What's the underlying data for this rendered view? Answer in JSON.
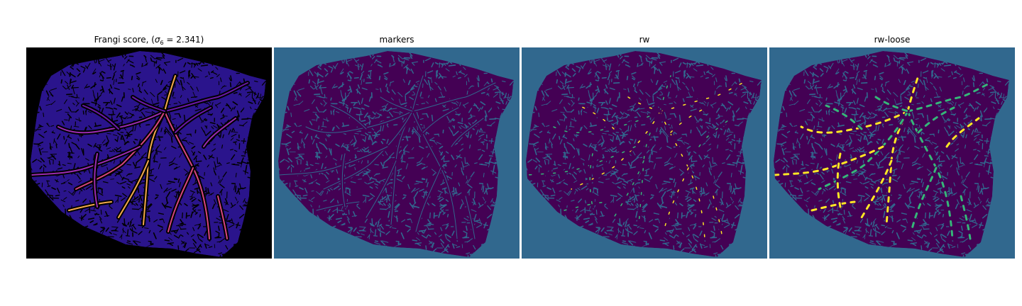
{
  "figure": {
    "panels": [
      {
        "id": "frangi",
        "title_main": "Frangi score, (",
        "title_sigma": "σ",
        "title_sub": "6",
        "title_tail": " = 2.341)",
        "background": "#000000",
        "tissue": "#2a148c",
        "vessel_colors": [
          "#f2a84a",
          "#d6467e",
          "#9b2bb0",
          "#6a17a6"
        ],
        "dark_gap": "#000000"
      },
      {
        "id": "markers",
        "title": "markers",
        "background": "#31688e",
        "tissue": "#440154",
        "gap": "#31688e",
        "vessel_colors": [
          "#35b779"
        ]
      },
      {
        "id": "rw",
        "title": "rw",
        "background": "#31688e",
        "tissue": "#440154",
        "gap": "#31688e",
        "vessel_colors": [
          "#35b779",
          "#fde725"
        ]
      },
      {
        "id": "rw-loose",
        "title": "rw-loose",
        "background": "#31688e",
        "tissue": "#440154",
        "gap": "#31688e",
        "vessel_colors": [
          "#fde725",
          "#35b779"
        ]
      }
    ]
  }
}
